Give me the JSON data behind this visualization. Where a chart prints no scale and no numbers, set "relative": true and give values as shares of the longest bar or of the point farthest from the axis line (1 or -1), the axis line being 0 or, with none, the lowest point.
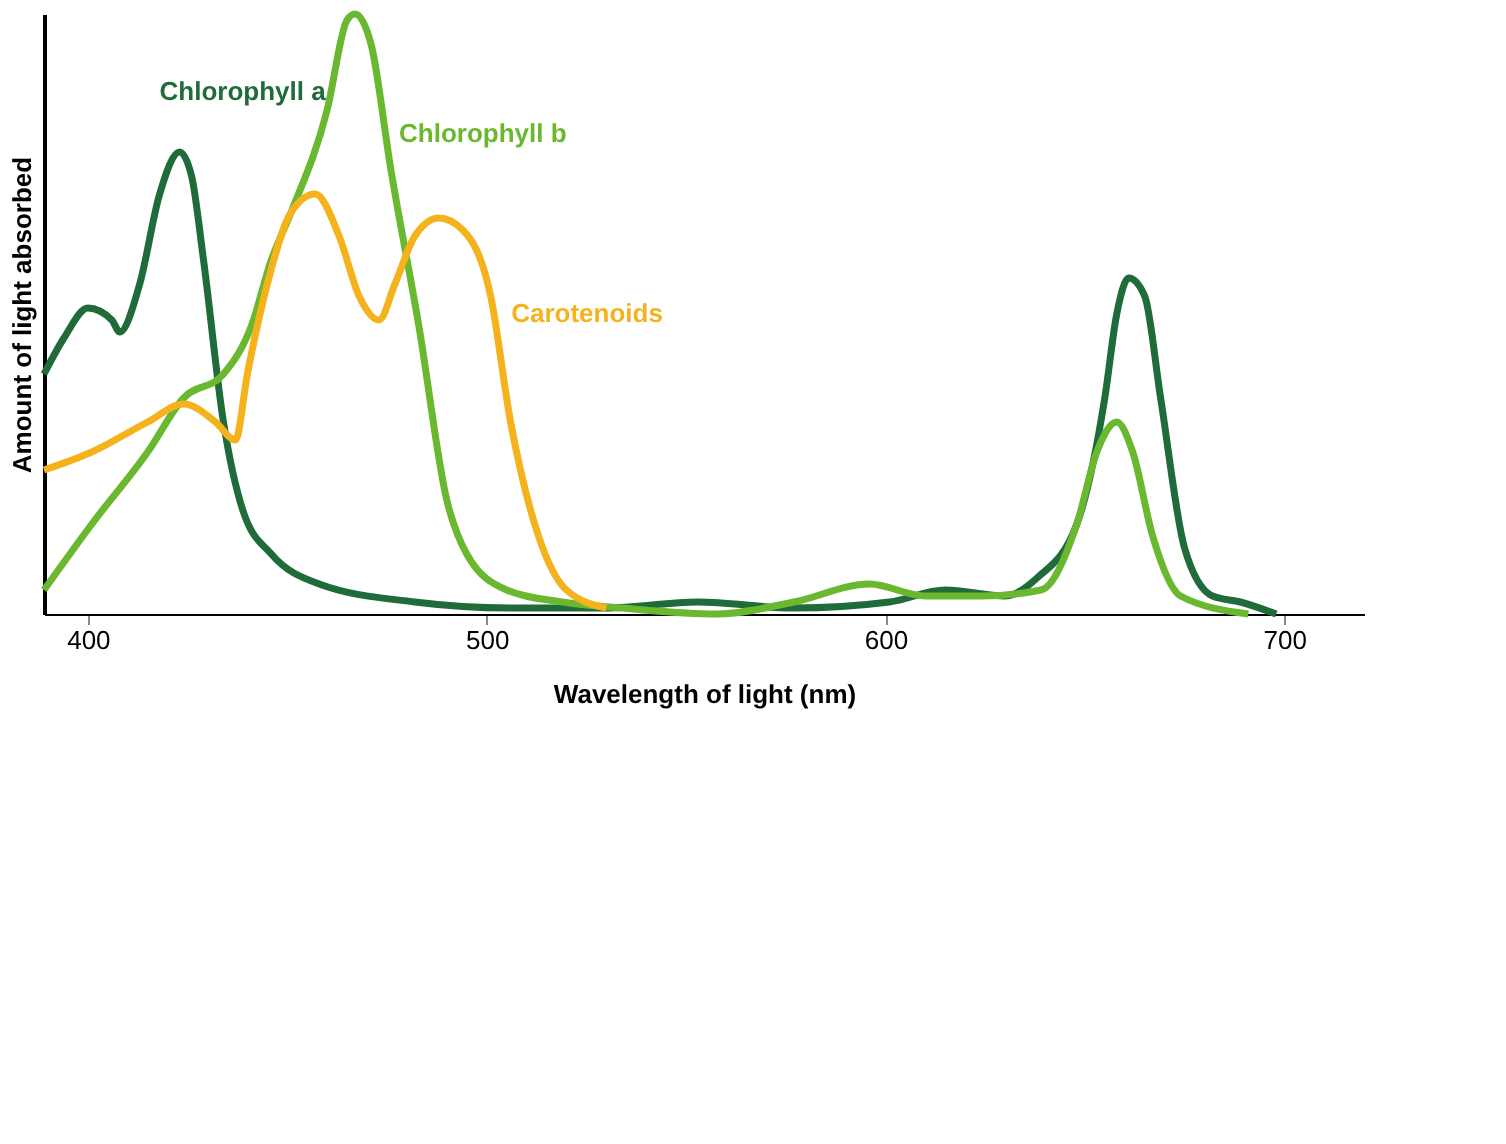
{
  "chart_data": {
    "type": "line",
    "relative": true,
    "xlabel": "Wavelength of light (nm)",
    "ylabel": "Amount of light absorbed",
    "xlim": [
      389,
      720
    ],
    "xticks": [
      400,
      500,
      600,
      700
    ],
    "grid": false,
    "marker": "none",
    "line_style": "solid",
    "series": [
      {
        "name": "Chlorophyll a",
        "color": "#1f6b3a",
        "x": [
          389,
          394,
          400,
          406,
          408,
          413,
          418,
          423,
          426,
          429,
          434,
          439,
          446,
          458,
          482,
          506,
          530,
          553,
          577,
          601,
          615,
          630,
          638,
          648,
          655,
          658,
          661,
          665,
          669,
          675,
          682,
          689,
          698
        ],
        "values": [
          0.4,
          0.46,
          0.51,
          0.49,
          0.47,
          0.55,
          0.7,
          0.77,
          0.73,
          0.59,
          0.32,
          0.17,
          0.1,
          0.05,
          0.02,
          0.01,
          0.01,
          0.02,
          0.01,
          0.02,
          0.04,
          0.03,
          0.06,
          0.15,
          0.36,
          0.5,
          0.56,
          0.53,
          0.36,
          0.11,
          0.03,
          0.02,
          0.0
        ]
      },
      {
        "name": "Chlorophyll b",
        "color": "#6ab82f",
        "x": [
          389,
          401,
          415,
          424,
          434,
          441,
          446,
          451,
          460,
          465,
          467,
          471,
          476,
          483,
          490,
          495,
          505,
          519,
          534,
          558,
          577,
          596,
          610,
          624,
          639,
          648,
          653,
          658,
          662,
          667,
          674,
          691
        ],
        "values": [
          0.04,
          0.15,
          0.27,
          0.36,
          0.4,
          0.48,
          0.59,
          0.67,
          0.84,
          0.99,
          1.0,
          0.95,
          0.74,
          0.48,
          0.19,
          0.1,
          0.04,
          0.02,
          0.01,
          0.0,
          0.02,
          0.05,
          0.03,
          0.03,
          0.04,
          0.15,
          0.27,
          0.32,
          0.27,
          0.13,
          0.03,
          0.0
        ]
      },
      {
        "name": "Carotenoids",
        "color": "#f4b21d",
        "x": [
          389,
          401,
          415,
          424,
          432,
          437,
          440,
          445,
          451,
          457,
          463,
          468,
          473,
          477,
          482,
          488,
          494,
          501,
          506,
          513,
          520,
          530
        ],
        "values": [
          0.24,
          0.27,
          0.32,
          0.35,
          0.32,
          0.29,
          0.4,
          0.55,
          0.67,
          0.7,
          0.63,
          0.53,
          0.49,
          0.55,
          0.63,
          0.66,
          0.64,
          0.53,
          0.32,
          0.13,
          0.04,
          0.01
        ]
      }
    ]
  }
}
